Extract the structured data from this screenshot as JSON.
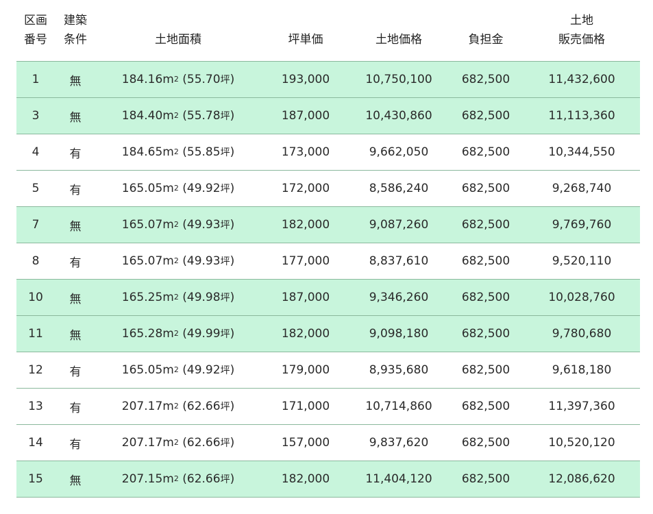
{
  "headers": {
    "no": [
      "区画",
      "番号"
    ],
    "cond": [
      "建築",
      "条件"
    ],
    "area": "土地面積",
    "unit_price": "坪単価",
    "land_price": "土地価格",
    "fee": "負担金",
    "total": [
      "土地",
      "販売価格"
    ]
  },
  "rows": [
    {
      "no": "1",
      "cond": "無",
      "sqm": "184.16",
      "tsubo": "55.70",
      "unit_price": "193,000",
      "land_price": "10,750,100",
      "fee": "682,500",
      "total": "11,432,600",
      "highlight": true
    },
    {
      "no": "3",
      "cond": "無",
      "sqm": "184.40",
      "tsubo": "55.78",
      "unit_price": "187,000",
      "land_price": "10,430,860",
      "fee": "682,500",
      "total": "11,113,360",
      "highlight": true
    },
    {
      "no": "4",
      "cond": "有",
      "sqm": "184.65",
      "tsubo": "55.85",
      "unit_price": "173,000",
      "land_price": "9,662,050",
      "fee": "682,500",
      "total": "10,344,550",
      "highlight": false
    },
    {
      "no": "5",
      "cond": "有",
      "sqm": "165.05",
      "tsubo": "49.92",
      "unit_price": "172,000",
      "land_price": "8,586,240",
      "fee": "682,500",
      "total": "9,268,740",
      "highlight": false
    },
    {
      "no": "7",
      "cond": "無",
      "sqm": "165.07",
      "tsubo": "49.93",
      "unit_price": "182,000",
      "land_price": "9,087,260",
      "fee": "682,500",
      "total": "9,769,760",
      "highlight": true
    },
    {
      "no": "8",
      "cond": "有",
      "sqm": "165.07",
      "tsubo": "49.93",
      "unit_price": "177,000",
      "land_price": "8,837,610",
      "fee": "682,500",
      "total": "9,520,110",
      "highlight": false
    },
    {
      "no": "10",
      "cond": "無",
      "sqm": "165.25",
      "tsubo": "49.98",
      "unit_price": "187,000",
      "land_price": "9,346,260",
      "fee": "682,500",
      "total": "10,028,760",
      "highlight": true
    },
    {
      "no": "11",
      "cond": "無",
      "sqm": "165.28",
      "tsubo": "49.99",
      "unit_price": "182,000",
      "land_price": "9,098,180",
      "fee": "682,500",
      "total": "9,780,680",
      "highlight": true
    },
    {
      "no": "12",
      "cond": "有",
      "sqm": "165.05",
      "tsubo": "49.92",
      "unit_price": "179,000",
      "land_price": "8,935,680",
      "fee": "682,500",
      "total": "9,618,180",
      "highlight": false
    },
    {
      "no": "13",
      "cond": "有",
      "sqm": "207.17",
      "tsubo": "62.66",
      "unit_price": "171,000",
      "land_price": "10,714,860",
      "fee": "682,500",
      "total": "11,397,360",
      "highlight": false
    },
    {
      "no": "14",
      "cond": "有",
      "sqm": "207.17",
      "tsubo": "62.66",
      "unit_price": "157,000",
      "land_price": "9,837,620",
      "fee": "682,500",
      "total": "10,520,120",
      "highlight": false
    },
    {
      "no": "15",
      "cond": "無",
      "sqm": "207.15",
      "tsubo": "62.66",
      "unit_price": "182,000",
      "land_price": "11,404,120",
      "fee": "682,500",
      "total": "12,086,620",
      "highlight": true
    }
  ],
  "units": {
    "sqm": "m",
    "sq": "2",
    "tsubo": "坪"
  },
  "colors": {
    "highlight": "#c8f5dc",
    "border": "#8ab89c"
  }
}
